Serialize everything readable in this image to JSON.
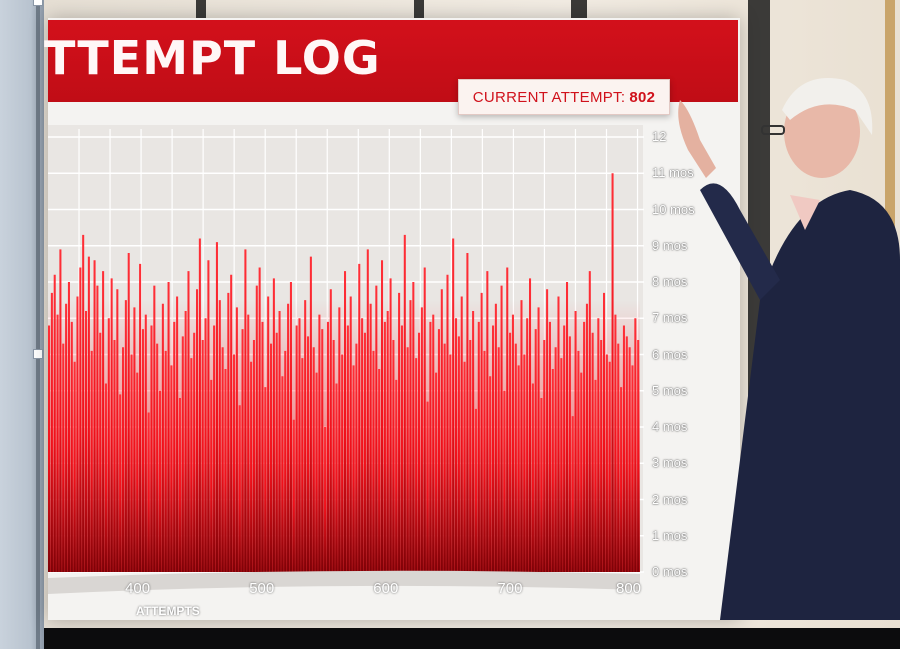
{
  "screen": {
    "title": "TTEMPT LOG",
    "badge_label": "CURRENT ATTEMPT:",
    "badge_value": "802",
    "accent": "#d0121c"
  },
  "chart_data": {
    "type": "bar",
    "title": "TTEMPT LOG",
    "xlabel": "ATTEMPTS",
    "ylabel": "",
    "x_ticks": [
      "400",
      "500",
      "600",
      "700",
      "800"
    ],
    "y_ticks": [
      "0 mos",
      "1 mos",
      "2 mos",
      "3 mos",
      "4 mos",
      "5 mos",
      "6 mos",
      "7 mos",
      "8 mos",
      "9 mos",
      "10 mos",
      "11 mos",
      "12"
    ],
    "xlim": [
      325,
      802
    ],
    "ylim": [
      0,
      12
    ],
    "grid": true,
    "bar_color": "#ff1a24",
    "values": [
      6.8,
      7.7,
      8.2,
      7.1,
      8.9,
      6.3,
      7.4,
      8.0,
      6.9,
      5.8,
      7.6,
      8.4,
      9.3,
      7.2,
      8.7,
      6.1,
      8.6,
      7.9,
      6.6,
      8.3,
      5.2,
      7.0,
      8.1,
      6.4,
      7.8,
      4.9,
      6.2,
      7.5,
      8.8,
      6.0,
      7.3,
      5.5,
      8.5,
      6.7,
      7.1,
      4.4,
      6.8,
      7.9,
      6.3,
      5.0,
      7.4,
      6.1,
      8.0,
      5.7,
      6.9,
      7.6,
      4.8,
      6.5,
      7.2,
      8.3,
      5.9,
      6.6,
      7.8,
      9.2,
      6.4,
      7.0,
      8.6,
      5.3,
      6.8,
      9.1,
      7.5,
      6.2,
      5.6,
      7.7,
      8.2,
      6.0,
      7.3,
      4.6,
      6.7,
      8.9,
      7.1,
      5.8,
      6.4,
      7.9,
      8.4,
      6.9,
      5.1,
      7.6,
      6.3,
      8.1,
      6.6,
      7.2,
      5.4,
      6.1,
      7.4,
      8.0,
      4.2,
      6.8,
      7.0,
      5.9,
      7.5,
      6.5,
      8.7,
      6.2,
      5.5,
      7.1,
      6.7,
      4.0,
      6.9,
      7.8,
      6.4,
      5.2,
      7.3,
      6.0,
      8.3,
      6.8,
      7.6,
      5.7,
      6.3,
      8.5,
      7.0,
      6.6,
      8.9,
      7.4,
      6.1,
      7.9,
      5.6,
      8.6,
      6.9,
      7.2,
      8.1,
      6.4,
      5.3,
      7.7,
      6.8,
      9.3,
      6.2,
      7.5,
      8.0,
      5.9,
      6.6,
      7.3,
      8.4,
      4.7,
      6.9,
      7.1,
      5.5,
      6.7,
      7.8,
      6.3,
      8.2,
      6.0,
      9.2,
      7.0,
      6.5,
      7.6,
      5.8,
      8.8,
      6.4,
      7.2,
      4.5,
      6.9,
      7.7,
      6.1,
      8.3,
      5.4,
      6.8,
      7.4,
      6.2,
      7.9,
      5.0,
      8.4,
      6.6,
      7.1,
      6.3,
      5.7,
      7.5,
      6.0,
      7.0,
      8.1,
      5.2,
      6.7,
      7.3,
      4.8,
      6.4,
      7.8,
      6.9,
      5.6,
      6.2,
      7.6,
      5.9,
      6.8,
      8.0,
      6.5,
      4.3,
      7.2,
      6.1,
      5.5,
      6.9,
      7.4,
      8.3,
      6.6,
      5.3,
      7.0,
      6.4,
      7.7,
      6.0,
      5.8,
      11.0,
      7.1,
      6.3,
      5.1,
      6.8,
      6.5,
      6.2,
      5.7,
      7.0,
      6.4
    ]
  }
}
